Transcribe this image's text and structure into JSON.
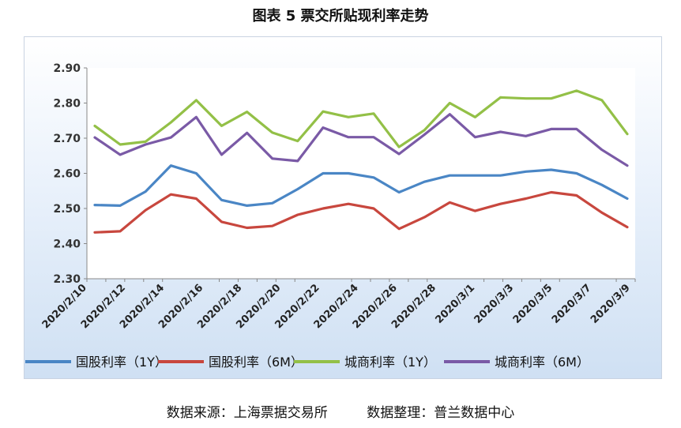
{
  "title": "图表 5  票交所贴现利率走势",
  "source_left": "数据来源：上海票据交易所",
  "source_right": "数据整理：普兰数据中心",
  "colors": {
    "gy1y": "#4a86c5",
    "gy6m": "#c8473e",
    "cs1y": "#93c047",
    "cs6m": "#7a5aa6",
    "axis": "#888888",
    "plot_bg": "#ffffff"
  },
  "chart_data": {
    "type": "line",
    "title": "图表 5  票交所贴现利率走势",
    "ylim": [
      2.3,
      2.9
    ],
    "yticks": [
      "2.90",
      "2.80",
      "2.70",
      "2.60",
      "2.50",
      "2.40",
      "2.30"
    ],
    "grid": false,
    "legend_position": "bottom",
    "x_tick_labels": [
      "2020/2/10",
      "2020/2/12",
      "2020/2/14",
      "2020/2/16",
      "2020/2/18",
      "2020/2/20",
      "2020/2/22",
      "2020/2/24",
      "2020/2/26",
      "2020/2/28",
      "2020/3/1",
      "2020/3/3",
      "2020/3/5",
      "2020/3/7",
      "2020/3/9"
    ],
    "x": [
      10,
      11,
      12,
      13,
      14,
      17,
      18,
      19,
      20,
      21,
      24,
      25,
      26,
      27,
      28,
      31,
      32,
      33,
      34,
      35,
      38,
      39
    ],
    "series": [
      {
        "name": "国股利率（1Y）",
        "color_key": "gy1y",
        "values": [
          2.51,
          2.508,
          2.548,
          2.622,
          2.6,
          2.524,
          2.508,
          2.515,
          2.555,
          2.6,
          2.6,
          2.588,
          2.546,
          2.576,
          2.594,
          2.594,
          2.594,
          2.605,
          2.61,
          2.6,
          2.567,
          2.528
        ]
      },
      {
        "name": "国股利率（6M）",
        "color_key": "gy6m",
        "values": [
          2.432,
          2.435,
          2.495,
          2.54,
          2.528,
          2.462,
          2.445,
          2.45,
          2.482,
          2.5,
          2.513,
          2.5,
          2.442,
          2.475,
          2.517,
          2.493,
          2.513,
          2.528,
          2.546,
          2.537,
          2.488,
          2.447
        ]
      },
      {
        "name": "城商利率（1Y）",
        "color_key": "cs1y",
        "values": [
          2.735,
          2.682,
          2.69,
          2.745,
          2.808,
          2.735,
          2.775,
          2.716,
          2.692,
          2.776,
          2.76,
          2.77,
          2.675,
          2.723,
          2.8,
          2.76,
          2.816,
          2.813,
          2.813,
          2.835,
          2.808,
          2.712
        ]
      },
      {
        "name": "城商利率（6M）",
        "color_key": "cs6m",
        "values": [
          2.702,
          2.653,
          2.682,
          2.702,
          2.76,
          2.653,
          2.715,
          2.642,
          2.635,
          2.73,
          2.703,
          2.703,
          2.655,
          2.71,
          2.768,
          2.703,
          2.718,
          2.706,
          2.726,
          2.726,
          2.667,
          2.622
        ]
      }
    ]
  }
}
